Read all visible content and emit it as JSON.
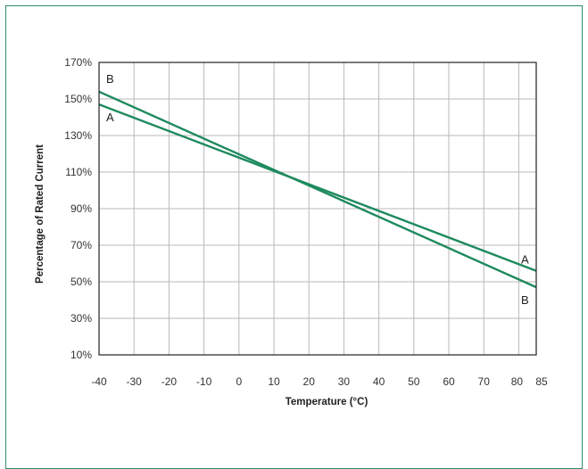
{
  "chart_data": {
    "type": "line",
    "title": "",
    "xlabel": "Temperature (°C)",
    "ylabel": "Percentage of Rated Current",
    "x_ticks": [
      -40,
      -30,
      -20,
      -10,
      0,
      10,
      20,
      30,
      40,
      50,
      60,
      70,
      80,
      85
    ],
    "x_tick_labels": [
      "-40",
      "-30",
      "-20",
      "-10",
      "0",
      "10",
      "20",
      "30",
      "40",
      "50",
      "60",
      "70",
      "80",
      "85"
    ],
    "y_ticks": [
      10,
      30,
      50,
      70,
      90,
      110,
      130,
      150,
      170
    ],
    "y_tick_labels": [
      "10%",
      "30%",
      "50%",
      "70%",
      "90%",
      "110%",
      "130%",
      "150%",
      "170%"
    ],
    "xlim": [
      -40,
      85
    ],
    "ylim": [
      10,
      170
    ],
    "grid": true,
    "series": [
      {
        "name": "A",
        "x": [
          -40,
          85
        ],
        "y": [
          147,
          56
        ],
        "start_label": "A",
        "end_label": "A"
      },
      {
        "name": "B",
        "x": [
          -40,
          85
        ],
        "y": [
          154,
          47
        ],
        "start_label": "B",
        "end_label": "B"
      }
    ],
    "colors": {
      "line": "#1e8a5e",
      "grid": "#b8b8b8",
      "frame": "#2e8b6e",
      "axes": "#222222"
    }
  }
}
